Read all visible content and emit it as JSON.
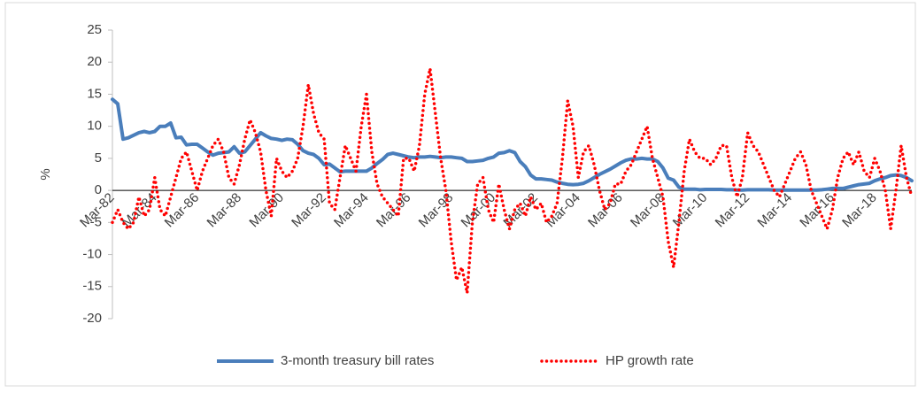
{
  "chart_data": {
    "type": "line",
    "y_label": "%",
    "ylim": [
      -20,
      25
    ],
    "yticks": [
      -20,
      -15,
      -10,
      -5,
      0,
      5,
      10,
      15,
      20,
      25
    ],
    "legend": "bottom",
    "categories": [
      "Mar-82",
      null,
      null,
      null,
      null,
      null,
      null,
      null,
      "Mar-84",
      null,
      null,
      null,
      null,
      null,
      null,
      null,
      "Mar-86",
      null,
      null,
      null,
      null,
      null,
      null,
      null,
      "Mar-88",
      null,
      null,
      null,
      null,
      null,
      null,
      null,
      "Mar-90",
      null,
      null,
      null,
      null,
      null,
      null,
      null,
      "Mar-92",
      null,
      null,
      null,
      null,
      null,
      null,
      null,
      "Mar-94",
      null,
      null,
      null,
      null,
      null,
      null,
      null,
      "Mar-96",
      null,
      null,
      null,
      null,
      null,
      null,
      null,
      "Mar-98",
      null,
      null,
      null,
      null,
      null,
      null,
      null,
      "Mar-00",
      null,
      null,
      null,
      null,
      null,
      null,
      null,
      "Mar-02",
      null,
      null,
      null,
      null,
      null,
      null,
      null,
      "Mar-04",
      null,
      null,
      null,
      null,
      null,
      null,
      null,
      "Mar-06",
      null,
      null,
      null,
      null,
      null,
      null,
      null,
      "Mar-08",
      null,
      null,
      null,
      null,
      null,
      null,
      null,
      "Mar-10",
      null,
      null,
      null,
      null,
      null,
      null,
      null,
      "Mar-12",
      null,
      null,
      null,
      null,
      null,
      null,
      null,
      "Mar-14",
      null,
      null,
      null,
      null,
      null,
      null,
      null,
      "Mar-16",
      null,
      null,
      null,
      null,
      null,
      null,
      null,
      "Mar-18",
      null,
      null,
      null,
      null,
      null,
      null,
      null
    ],
    "series": [
      {
        "name": "3-month treasury bill rates",
        "color": "#4a7ebb",
        "line_style": "solid",
        "values": [
          14.2,
          13.5,
          8.0,
          8.2,
          8.6,
          9.0,
          9.2,
          9.0,
          9.2,
          10.0,
          10.0,
          10.5,
          8.2,
          8.3,
          7.1,
          7.2,
          7.2,
          6.6,
          6.0,
          5.5,
          5.8,
          5.9,
          6.0,
          6.8,
          5.8,
          6.0,
          7.0,
          8.0,
          9.0,
          8.5,
          8.1,
          8.0,
          7.8,
          8.0,
          7.9,
          7.2,
          6.2,
          5.8,
          5.6,
          5.0,
          4.0,
          4.1,
          3.5,
          2.9,
          3.0,
          3.0,
          3.0,
          3.0,
          3.0,
          3.5,
          4.2,
          4.8,
          5.6,
          5.8,
          5.6,
          5.4,
          5.2,
          5.1,
          5.2,
          5.2,
          5.3,
          5.2,
          5.1,
          5.2,
          5.2,
          5.1,
          5.0,
          4.5,
          4.5,
          4.6,
          4.7,
          5.0,
          5.2,
          5.8,
          5.9,
          6.2,
          5.9,
          4.5,
          3.7,
          2.4,
          1.8,
          1.8,
          1.7,
          1.6,
          1.3,
          1.1,
          0.95,
          0.9,
          0.95,
          1.1,
          1.5,
          2.0,
          2.5,
          2.9,
          3.3,
          3.8,
          4.3,
          4.7,
          4.9,
          4.9,
          5.0,
          4.9,
          4.9,
          4.5,
          3.5,
          1.9,
          1.6,
          0.5,
          0.2,
          0.2,
          0.2,
          0.1,
          0.15,
          0.15,
          0.15,
          0.15,
          0.1,
          0.1,
          0.05,
          0.05,
          0.1,
          0.1,
          0.1,
          0.1,
          0.1,
          0.05,
          0.05,
          0.05,
          0.05,
          0.05,
          0.05,
          0.05,
          0.05,
          0.05,
          0.1,
          0.2,
          0.3,
          0.3,
          0.3,
          0.5,
          0.7,
          0.9,
          1.0,
          1.1,
          1.5,
          1.8,
          2.0,
          2.3,
          2.4,
          2.3,
          2.0,
          1.5
        ]
      },
      {
        "name": "HP growth rate",
        "color": "#ff0000",
        "line_style": "dotted",
        "values": [
          -5,
          -3,
          -5,
          -6,
          -5,
          -1,
          -4,
          -3,
          2,
          -3,
          -4,
          -1,
          2,
          5,
          6,
          3,
          0,
          3,
          5,
          7,
          8,
          6,
          2,
          1,
          4,
          8,
          11,
          9,
          6,
          0,
          -4,
          5,
          3,
          2,
          3,
          5,
          10,
          16.5,
          12,
          9,
          8,
          -2,
          -3,
          2,
          7,
          5,
          3,
          10,
          15,
          6,
          1,
          -1,
          -2,
          -3,
          -4,
          5,
          5,
          3,
          7,
          15,
          19,
          12,
          5,
          0,
          -8,
          -14,
          -12,
          -16,
          -5,
          1,
          2,
          -3,
          -5,
          1,
          -3,
          -6,
          -3,
          -2,
          -4,
          -1,
          -3,
          -2,
          -5,
          -4,
          -2,
          5,
          14,
          10,
          2,
          6,
          7,
          4,
          0,
          -3,
          -2,
          1,
          1,
          3,
          4,
          6,
          8,
          10,
          5,
          2,
          -1,
          -8,
          -12,
          -5,
          3,
          8,
          6,
          5,
          5,
          4,
          5,
          7,
          7,
          2,
          -1,
          2,
          9,
          7,
          6,
          4,
          2,
          0,
          -1,
          1,
          3,
          5,
          6,
          4,
          0,
          -2,
          -4,
          -6,
          -3,
          2,
          5,
          6,
          4,
          6,
          3,
          2,
          5,
          3,
          0,
          -6,
          0,
          7,
          2,
          -1
        ]
      }
    ]
  }
}
